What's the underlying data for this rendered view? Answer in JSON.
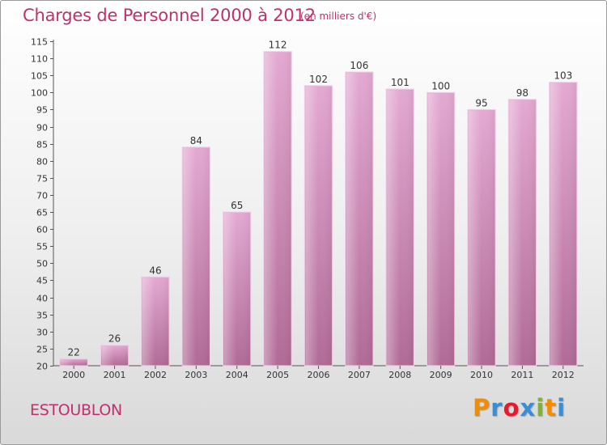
{
  "header": {
    "title": "Charges de Personnel 2000 à 2012",
    "subtitle": "(en milliers d'€)"
  },
  "footer": {
    "commune": "ESTOUBLON",
    "logo_letters": [
      "P",
      "r",
      "o",
      "x",
      "i",
      "t",
      "i"
    ],
    "logo_colors": [
      "#f28c00",
      "#3a8ed8",
      "#e8192c",
      "#3a8ed8",
      "#7bb52a",
      "#f28c00",
      "#3a8ed8"
    ]
  },
  "colors": {
    "bar_top": "#e4a9d2",
    "bar_bottom": "#b06b96",
    "text": "#c0306e"
  },
  "chart_data": {
    "type": "bar",
    "title": "Charges de Personnel 2000 à 2012",
    "subtitle": "(en milliers d'€)",
    "categories": [
      "2000",
      "2001",
      "2002",
      "2003",
      "2004",
      "2005",
      "2006",
      "2007",
      "2008",
      "2009",
      "2010",
      "2011",
      "2012"
    ],
    "values": [
      22,
      26,
      46,
      84,
      65,
      112,
      102,
      106,
      101,
      100,
      95,
      98,
      103
    ],
    "ylim": [
      20,
      115
    ],
    "yticks": [
      20,
      25,
      30,
      35,
      40,
      45,
      50,
      55,
      60,
      65,
      70,
      75,
      80,
      85,
      90,
      95,
      100,
      105,
      110,
      115
    ],
    "grid": false,
    "legend": "none"
  }
}
